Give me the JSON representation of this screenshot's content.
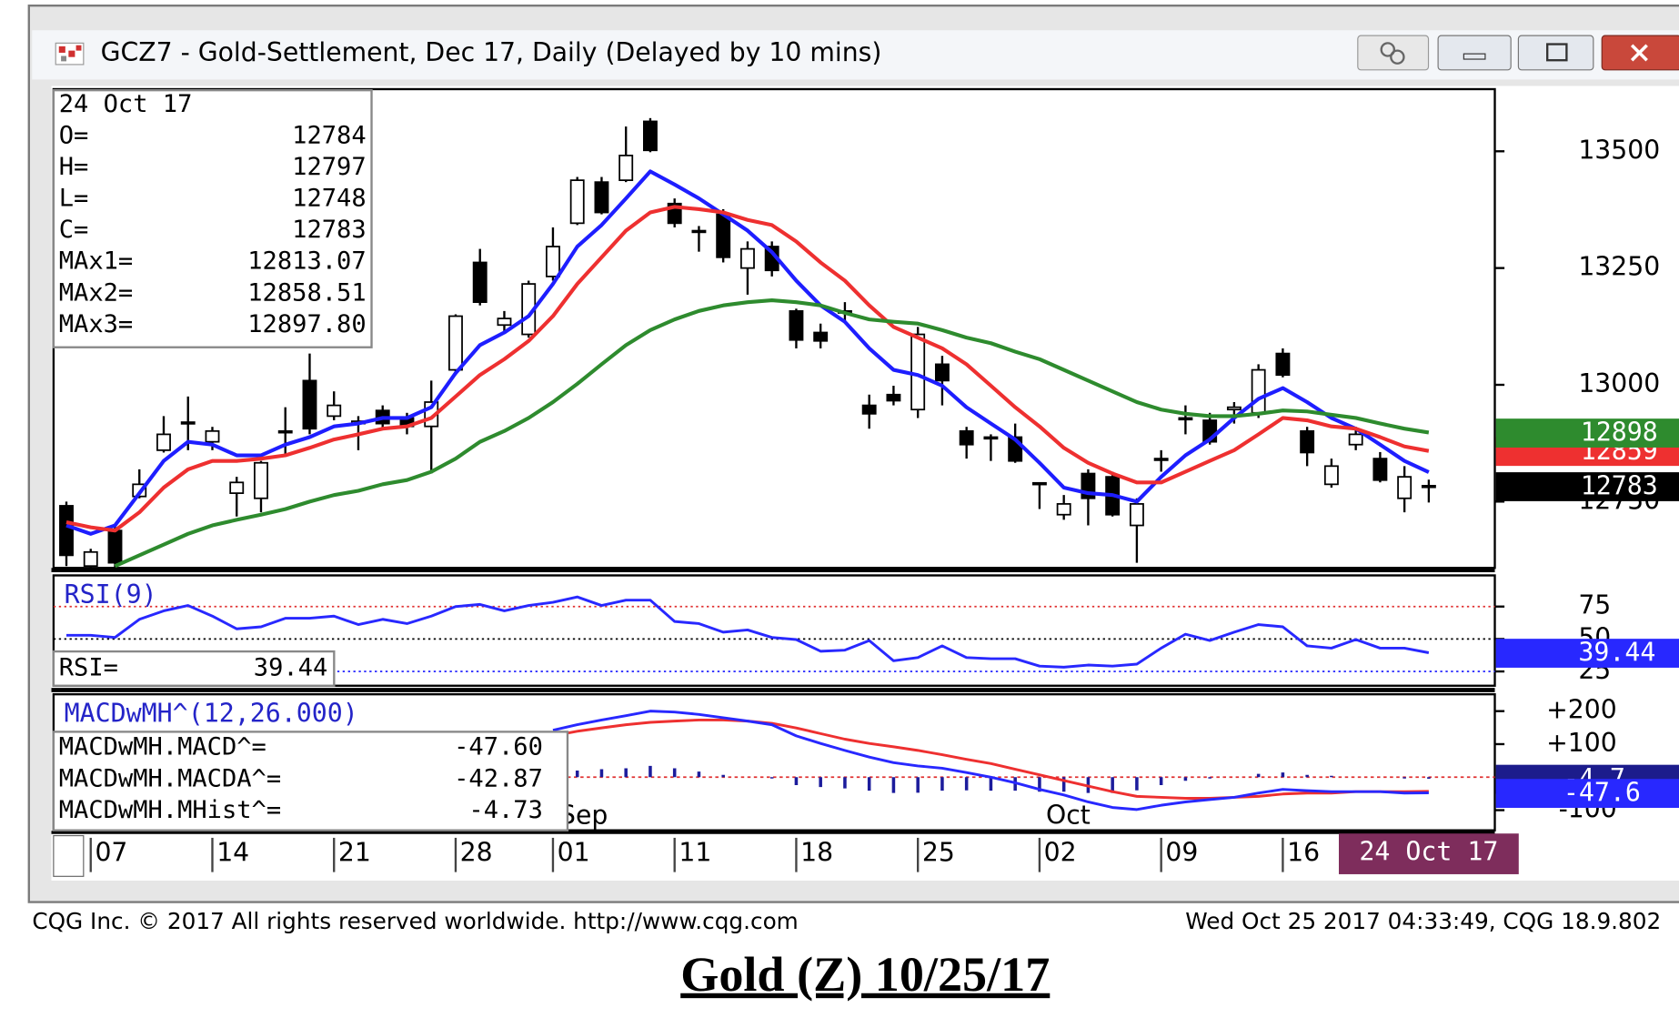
{
  "window": {
    "title": "GCZ7 - Gold-Settlement, Dec 17, Daily (Delayed by 10 mins)"
  },
  "chart_data": [
    {
      "type": "candlestick",
      "categories": [
        null,
        "07",
        null,
        null,
        null,
        null,
        "14",
        null,
        null,
        null,
        null,
        "21",
        null,
        null,
        null,
        null,
        "28",
        null,
        null,
        null,
        "01",
        null,
        null,
        null,
        null,
        "11",
        null,
        null,
        null,
        null,
        "18",
        null,
        null,
        null,
        null,
        "25",
        null,
        null,
        null,
        null,
        "02",
        null,
        null,
        null,
        null,
        "09",
        null,
        null,
        null,
        null,
        "16",
        null,
        null,
        null,
        null,
        null,
        null
      ],
      "open": [
        12741,
        12612,
        12688,
        12761,
        12860,
        12920,
        12878,
        12768,
        12757,
        12901,
        13009,
        12933,
        12917,
        12945,
        12929,
        12911,
        13032,
        13262,
        13128,
        13108,
        13232,
        13346,
        13434,
        13438,
        13564,
        13388,
        13330,
        13365,
        13250,
        13296,
        13158,
        13112,
        13158,
        12956,
        12979,
        12947,
        13044,
        12901,
        12888,
        12888,
        12790,
        12722,
        12810,
        12803,
        12699,
        12842,
        12929,
        12924,
        12947,
        12940,
        13067,
        12901,
        12787,
        12872,
        12842,
        12757,
        12784
      ],
      "high": [
        12750,
        12649,
        12700,
        12819,
        12933,
        12975,
        12910,
        12803,
        12837,
        12952,
        13067,
        12986,
        12933,
        12956,
        12940,
        13009,
        13151,
        13291,
        13158,
        13223,
        13337,
        13445,
        13445,
        13553,
        13571,
        13399,
        13340,
        13376,
        13307,
        13307,
        13163,
        13131,
        13177,
        12979,
        12998,
        13124,
        13062,
        12910,
        12894,
        12917,
        12791,
        12764,
        12819,
        12814,
        12757,
        12860,
        12956,
        12940,
        12963,
        13044,
        13078,
        12910,
        12842,
        12910,
        12856,
        12826,
        12797
      ],
      "low": [
        12612,
        12608,
        12608,
        12757,
        12855,
        12860,
        12860,
        12718,
        12727,
        12849,
        12894,
        12924,
        12860,
        12906,
        12894,
        12810,
        13021,
        13170,
        13112,
        13101,
        13223,
        13342,
        13365,
        13434,
        13498,
        13337,
        13285,
        13262,
        13193,
        13232,
        13078,
        13078,
        13135,
        12906,
        12956,
        12929,
        12956,
        12842,
        12837,
        12833,
        12734,
        12711,
        12699,
        12718,
        12619,
        12814,
        12894,
        12872,
        12917,
        12929,
        13016,
        12826,
        12780,
        12860,
        12791,
        12727,
        12748
      ],
      "close": [
        12635,
        12642,
        12619,
        12787,
        12894,
        12918,
        12901,
        12791,
        12833,
        12901,
        12906,
        12956,
        12922,
        12917,
        12911,
        12963,
        13147,
        13177,
        13142,
        13216,
        13296,
        13438,
        13369,
        13491,
        13502,
        13346,
        13328,
        13273,
        13291,
        13245,
        13096,
        13094,
        13154,
        12938,
        12966,
        13108,
        13009,
        12872,
        12886,
        12837,
        12788,
        12745,
        12757,
        12722,
        12745,
        12840,
        12927,
        12878,
        12952,
        13032,
        13021,
        12855,
        12826,
        12894,
        12796,
        12803,
        12783
      ],
      "up_color": "#ffffff",
      "down_color": "#000000",
      "series": [
        {
          "color": "#1e1eff",
          "values": [
            12699,
            12681,
            12699,
            12768,
            12837,
            12878,
            12872,
            12849,
            12849,
            12872,
            12888,
            12911,
            12917,
            12929,
            12929,
            12952,
            13025,
            13085,
            13112,
            13147,
            13216,
            13296,
            13342,
            13399,
            13457,
            13429,
            13399,
            13365,
            13330,
            13284,
            13223,
            13170,
            13135,
            13078,
            13032,
            13021,
            12998,
            12952,
            12917,
            12883,
            12833,
            12780,
            12768,
            12764,
            12750,
            12803,
            12849,
            12883,
            12929,
            12970,
            12993,
            12963,
            12929,
            12906,
            12872,
            12837,
            12813.07
          ]
        },
        {
          "color": "#ee3030",
          "tag": "12859",
          "values": [
            12706,
            12695,
            12688,
            12727,
            12780,
            12819,
            12837,
            12837,
            12842,
            12849,
            12865,
            12883,
            12894,
            12906,
            12911,
            12929,
            12975,
            13021,
            13055,
            13094,
            13147,
            13216,
            13273,
            13330,
            13369,
            13381,
            13376,
            13369,
            13353,
            13342,
            13307,
            13262,
            13223,
            13170,
            13124,
            13101,
            13078,
            13044,
            12998,
            12952,
            12911,
            12865,
            12833,
            12810,
            12791,
            12791,
            12814,
            12837,
            12860,
            12894,
            12929,
            12924,
            12911,
            12906,
            12888,
            12868,
            12858.51
          ]
        },
        {
          "color": "#2e8b2e",
          "tag": "12898",
          "values": [
            null,
            null,
            12612,
            12635,
            12658,
            12681,
            12699,
            12711,
            12722,
            12734,
            12750,
            12764,
            12773,
            12787,
            12796,
            12814,
            12842,
            12878,
            12901,
            12929,
            12963,
            13002,
            13044,
            13085,
            13117,
            13140,
            13158,
            13170,
            13177,
            13181,
            13177,
            13170,
            13154,
            13140,
            13135,
            13131,
            13117,
            13101,
            13089,
            13071,
            13055,
            13032,
            13009,
            12986,
            12963,
            12947,
            12938,
            12933,
            12933,
            12938,
            12945,
            12943,
            12936,
            12929,
            12917,
            12906,
            12897.8
          ]
        }
      ],
      "close_tag": "12783",
      "close_tag_color": "#000000",
      "ylim": [
        12608,
        13633
      ],
      "yticks": [
        12750,
        13000,
        13250,
        13500
      ],
      "info_box": {
        "date": "24 Oct 17",
        "rows": [
          [
            "O=",
            "12784"
          ],
          [
            "H=",
            "12797"
          ],
          [
            "L=",
            "12748"
          ],
          [
            "C=",
            "12783"
          ],
          [
            "MAx1=",
            "12813.07"
          ],
          [
            "MAx2=",
            "12858.51"
          ],
          [
            "MAx3=",
            "12897.80"
          ]
        ]
      },
      "cursor_label": "24 Oct 17",
      "cursor_color": "#7e2d5c"
    },
    {
      "type": "line",
      "title": "RSI(9)",
      "series": [
        {
          "color": "#2828ff",
          "tag": "39.44",
          "tag_color": "#2828ff",
          "values": [
            52.9,
            52.9,
            51.2,
            65.2,
            71.7,
            75.8,
            67.6,
            57.8,
            59.4,
            66.0,
            66.0,
            67.6,
            61.1,
            65.2,
            61.9,
            67.6,
            75.0,
            76.6,
            71.7,
            75.8,
            78.3,
            82.4,
            75.8,
            79.9,
            79.9,
            63.5,
            61.9,
            55.3,
            57.0,
            51.2,
            49.6,
            40.6,
            41.4,
            48.8,
            33.2,
            35.7,
            44.7,
            35.7,
            34.8,
            34.8,
            29.1,
            28.3,
            29.9,
            29.1,
            30.7,
            43.0,
            53.7,
            48.8,
            55.3,
            61.1,
            59.4,
            44.7,
            43.0,
            49.6,
            43.0,
            43.0,
            39.44
          ]
        }
      ],
      "ylim": [
        14,
        99
      ],
      "yticks": [
        25,
        50,
        75
      ],
      "grid_colors": [
        "#3030ff",
        "#000000",
        "#e03030"
      ],
      "info_box": {
        "rows": [
          [
            "RSI=",
            "39.44"
          ]
        ]
      }
    },
    {
      "type": "line",
      "title": "MACDwMH^(12,26.000)",
      "categories": [
        null,
        null,
        null,
        null,
        null,
        null,
        null,
        null,
        null,
        null,
        null,
        null,
        null,
        null,
        null,
        null,
        null,
        null,
        null,
        null,
        "Sep",
        null,
        null,
        null,
        null,
        null,
        null,
        null,
        null,
        null,
        null,
        null,
        null,
        null,
        null,
        null,
        null,
        null,
        null,
        null,
        "Oct",
        null,
        null,
        null,
        null,
        null,
        null,
        null,
        null,
        null,
        null,
        null,
        null,
        null,
        null,
        null,
        null
      ],
      "series": [
        {
          "style": "bar",
          "color": "#1c1c9c",
          "tag": "-4.7",
          "tag_color": "#1c1c8c",
          "values": [
            null,
            null,
            null,
            null,
            null,
            null,
            null,
            null,
            null,
            null,
            null,
            null,
            null,
            null,
            null,
            null,
            null,
            null,
            null,
            null,
            17,
            20,
            24,
            27,
            34,
            27,
            17,
            7,
            0,
            -4,
            -24,
            -30,
            -34,
            -41,
            -48,
            -47,
            -41,
            -40,
            -41,
            -41,
            -44,
            -44,
            -48,
            -48,
            -40,
            -24,
            -11,
            -4,
            0,
            10,
            14,
            7,
            4,
            0,
            0,
            -4,
            -4.73
          ]
        },
        {
          "color": "#ee3030",
          "values": [
            null,
            null,
            null,
            null,
            null,
            null,
            null,
            null,
            null,
            null,
            null,
            null,
            null,
            null,
            null,
            null,
            null,
            null,
            null,
            null,
            125,
            139,
            149,
            159,
            166,
            170,
            173,
            173,
            170,
            163,
            149,
            132,
            115,
            102,
            92,
            81,
            68,
            54,
            41,
            24,
            7,
            -10,
            -27,
            -44,
            -58,
            -61,
            -64,
            -64,
            -61,
            -58,
            -51,
            -48,
            -48,
            -44,
            -44,
            -44,
            -42.87
          ]
        },
        {
          "color": "#2828ff",
          "tag": "-47.6",
          "tag_color": "#2828ff",
          "values": [
            null,
            null,
            null,
            null,
            null,
            null,
            null,
            null,
            null,
            null,
            null,
            null,
            null,
            null,
            null,
            null,
            null,
            null,
            null,
            null,
            142,
            159,
            173,
            186,
            200,
            197,
            190,
            180,
            170,
            159,
            125,
            102,
            81,
            61,
            44,
            34,
            27,
            14,
            0,
            -17,
            -37,
            -54,
            -75,
            -92,
            -98,
            -85,
            -75,
            -68,
            -61,
            -48,
            -37,
            -41,
            -44,
            -44,
            -44,
            -48,
            -47.6
          ]
        }
      ],
      "ylim": [
        -161,
        251
      ],
      "yticks": [
        {
          "value": 200,
          "label": "+200"
        },
        {
          "value": 100,
          "label": "+100"
        },
        -100
      ],
      "zero_line_color": "#e03030",
      "info_box": {
        "rows": [
          [
            "MACDwMH.MACD^=",
            "-47.60"
          ],
          [
            "MACDwMH.MACDA^=",
            "-42.87"
          ],
          [
            "MACDwMH.MHist^=",
            "-4.73"
          ]
        ]
      }
    }
  ],
  "footer": {
    "left": "CQG Inc. © 2017 All rights reserved worldwide. http://www.cqg.com",
    "right": "Wed Oct 25 2017 04:33:49, CQG 18.9.802"
  },
  "caption": "Gold (Z) 10/25/17"
}
